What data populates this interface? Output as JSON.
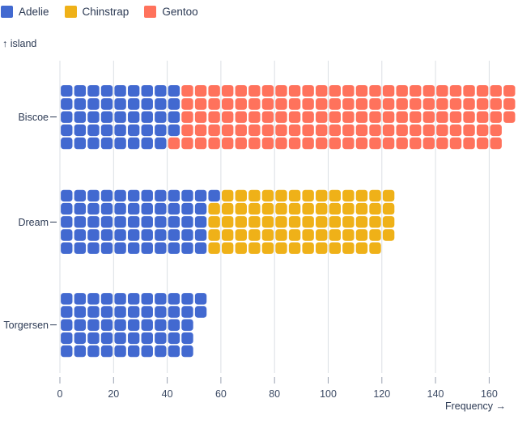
{
  "legend": {
    "items": [
      {
        "label": "Adelie",
        "color": "#4269d0"
      },
      {
        "label": "Chinstrap",
        "color": "#efb118"
      },
      {
        "label": "Gentoo",
        "color": "#ff725c"
      }
    ]
  },
  "chart_data": {
    "type": "bar",
    "variant": "waffle-unit-chart",
    "orientation": "horizontal",
    "title": "",
    "xlabel": "Frequency →",
    "ylabel": "↑ island",
    "categories": [
      "Biscoe",
      "Dream",
      "Torgersen"
    ],
    "series": [
      {
        "name": "Adelie",
        "color": "#4269d0",
        "values": [
          44,
          56,
          52
        ]
      },
      {
        "name": "Chinstrap",
        "color": "#efb118",
        "values": [
          0,
          68,
          0
        ]
      },
      {
        "name": "Gentoo",
        "color": "#ff725c",
        "values": [
          124,
          0,
          0
        ]
      }
    ],
    "x_ticks": [
      0,
      20,
      40,
      60,
      80,
      100,
      120,
      140,
      160
    ],
    "xlim": [
      0,
      170
    ],
    "units_per_cell": 1,
    "rows_per_bar": 5,
    "grid": true,
    "legend_position": "top-left",
    "colors": {
      "grid": "#dbdfe4",
      "tick": "#99a1b0",
      "tick_label": "#3c4a64",
      "text": "#2c3a54"
    }
  }
}
